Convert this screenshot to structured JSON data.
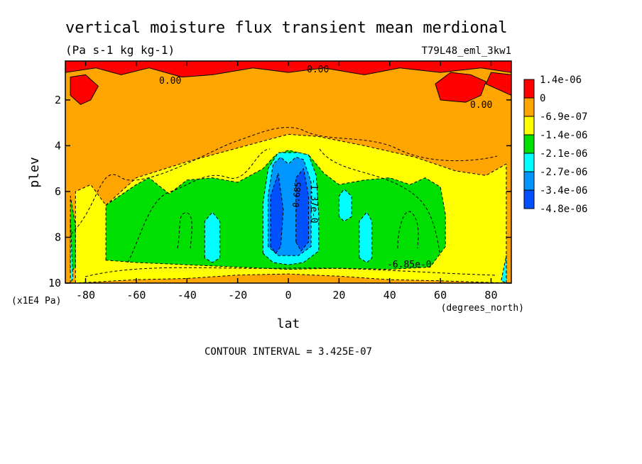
{
  "chart_data": {
    "type": "heatmap",
    "title": "vertical moisture flux transient mean merdional",
    "units": "(Pa s-1 kg kg-1)",
    "dataset": "T79L48_eml_3kw1",
    "xlabel": "lat",
    "xunit": "(degrees_north)",
    "ylabel": "plev",
    "yunit": "(x1E4 Pa)",
    "xlim": [
      -88,
      88
    ],
    "ylim": [
      10,
      0.3
    ],
    "x_ticks": [
      -80,
      -60,
      -40,
      -20,
      0,
      20,
      40,
      60,
      80
    ],
    "x_tick_labels": [
      "-80",
      "-60",
      "-40",
      "-20",
      "0",
      "20",
      "40",
      "60",
      "80"
    ],
    "y_ticks": [
      2,
      4,
      6,
      8,
      10
    ],
    "y_tick_labels": [
      "2",
      "4",
      "6",
      "8",
      "10"
    ],
    "contour_interval": "CONTOUR INTERVAL = 3.425E-07",
    "contour_labels": [
      "0.00",
      "0.00",
      "0.00",
      "-6.85e-0",
      "-1.37e-0",
      "-0.685"
    ],
    "legend": {
      "placement": "right",
      "levels": [
        {
          "label": "1.4e-06",
          "color": "#ff0000"
        },
        {
          "label": "0",
          "color": "#ffa500"
        },
        {
          "label": "-6.9e-07",
          "color": "#ffff00"
        },
        {
          "label": "-1.4e-06",
          "color": "#00e000"
        },
        {
          "label": "-2.1e-06",
          "color": "#00ffff"
        },
        {
          "label": "-2.7e-06",
          "color": "#0096ff"
        },
        {
          "label": "-3.4e-06",
          "color": "#0050ff"
        },
        {
          "label": "-4.8e-06",
          "color": "#ffffff"
        }
      ]
    },
    "regions": [
      {
        "level": "-6.9e-07",
        "points": [
          [
            -84,
            10
          ],
          [
            -84,
            6
          ],
          [
            -78,
            5.7
          ],
          [
            -72,
            6.6
          ],
          [
            -60,
            5.4
          ],
          [
            -40,
            4.7
          ],
          [
            -20,
            4.1
          ],
          [
            -10,
            3.8
          ],
          [
            0,
            3.5
          ],
          [
            12,
            3.6
          ],
          [
            30,
            4.0
          ],
          [
            50,
            4.5
          ],
          [
            66,
            5.1
          ],
          [
            78,
            5.3
          ],
          [
            86,
            4.8
          ],
          [
            86,
            10
          ],
          [
            60,
            9.9
          ],
          [
            40,
            9.85
          ],
          [
            20,
            9.7
          ],
          [
            0,
            9.6
          ],
          [
            -20,
            9.65
          ],
          [
            -40,
            9.8
          ],
          [
            -60,
            9.85
          ]
        ]
      },
      {
        "level": "-1.4e-06",
        "points": [
          [
            -72,
            9.0
          ],
          [
            -72,
            6.6
          ],
          [
            -60,
            5.7
          ],
          [
            -55,
            5.4
          ],
          [
            -47,
            6.1
          ],
          [
            -40,
            5.5
          ],
          [
            -30,
            5.4
          ],
          [
            -20,
            5.6
          ],
          [
            -10,
            5.0
          ],
          [
            -5,
            4.4
          ],
          [
            0,
            4.2
          ],
          [
            8,
            4.4
          ],
          [
            14,
            5.2
          ],
          [
            20,
            5.7
          ],
          [
            30,
            5.5
          ],
          [
            40,
            5.4
          ],
          [
            48,
            5.7
          ],
          [
            54,
            5.4
          ],
          [
            60,
            5.8
          ],
          [
            62,
            7.0
          ],
          [
            62,
            8.4
          ],
          [
            56,
            9.3
          ],
          [
            40,
            9.4
          ],
          [
            20,
            9.35
          ],
          [
            0,
            9.4
          ],
          [
            -20,
            9.3
          ],
          [
            -40,
            9.2
          ],
          [
            -60,
            9.1
          ]
        ]
      },
      {
        "level": "-1.4e-06",
        "points": [
          [
            -86,
            9.5
          ],
          [
            -86,
            6.2
          ],
          [
            -84,
            7.5
          ],
          [
            -84,
            9.3
          ]
        ]
      },
      {
        "level": "-2.1e-06",
        "points": [
          [
            -10,
            8.7
          ],
          [
            -10,
            6.5
          ],
          [
            -8,
            5.0
          ],
          [
            -4,
            4.3
          ],
          [
            0,
            4.3
          ],
          [
            4,
            4.3
          ],
          [
            8,
            4.4
          ],
          [
            11,
            5.3
          ],
          [
            12,
            7.0
          ],
          [
            12,
            8.6
          ],
          [
            6,
            9.1
          ],
          [
            0,
            9.2
          ],
          [
            -6,
            9.1
          ]
        ]
      },
      {
        "level": "-2.1e-06",
        "points": [
          [
            -33,
            8.9
          ],
          [
            -33,
            7.3
          ],
          [
            -30,
            6.9
          ],
          [
            -27,
            7.3
          ],
          [
            -27,
            8.9
          ],
          [
            -30,
            9.1
          ]
        ]
      },
      {
        "level": "-2.1e-06",
        "points": [
          [
            20,
            7.1
          ],
          [
            20,
            6.2
          ],
          [
            22,
            5.9
          ],
          [
            25,
            6.2
          ],
          [
            25,
            7.1
          ],
          [
            22,
            7.3
          ]
        ]
      },
      {
        "level": "-2.1e-06",
        "points": [
          [
            28,
            8.9
          ],
          [
            28,
            7.3
          ],
          [
            31,
            6.9
          ],
          [
            33,
            7.3
          ],
          [
            33,
            8.9
          ],
          [
            31,
            9.1
          ]
        ]
      },
      {
        "level": "-2.1e-06",
        "points": [
          [
            -86,
            10
          ],
          [
            -86,
            7.2
          ],
          [
            -85,
            9.8
          ]
        ]
      },
      {
        "level": "-2.1e-06",
        "points": [
          [
            86,
            10
          ],
          [
            86,
            8.8
          ],
          [
            84,
            9.9
          ]
        ]
      },
      {
        "level": "-2.7e-06",
        "points": [
          [
            -8,
            8.4
          ],
          [
            -8,
            6.2
          ],
          [
            -6,
            4.8
          ],
          [
            -3,
            4.5
          ],
          [
            0,
            4.8
          ],
          [
            3,
            4.5
          ],
          [
            6,
            4.6
          ],
          [
            9,
            5.6
          ],
          [
            9,
            8.4
          ],
          [
            4,
            8.8
          ],
          [
            -4,
            8.8
          ]
        ]
      },
      {
        "level": "-3.4e-06",
        "points": [
          [
            -7,
            8.4
          ],
          [
            -7,
            6.2
          ],
          [
            -4,
            5.2
          ],
          [
            -2,
            6.8
          ],
          [
            -3,
            8.4
          ],
          [
            -5,
            8.7
          ]
        ]
      },
      {
        "level": "-3.4e-06",
        "points": [
          [
            3,
            8.2
          ],
          [
            3,
            5.4
          ],
          [
            6,
            5.0
          ],
          [
            8,
            6.2
          ],
          [
            8,
            8.2
          ],
          [
            5,
            8.6
          ]
        ]
      },
      {
        "level": "1.4e-06",
        "points": [
          [
            -88,
            0.3
          ],
          [
            -88,
            0.8
          ],
          [
            -76,
            0.6
          ],
          [
            -66,
            0.9
          ],
          [
            -55,
            0.6
          ],
          [
            -42,
            1.0
          ],
          [
            -30,
            0.9
          ],
          [
            -14,
            0.6
          ],
          [
            0,
            0.8
          ],
          [
            14,
            0.6
          ],
          [
            30,
            0.9
          ],
          [
            44,
            0.6
          ],
          [
            60,
            0.8
          ],
          [
            76,
            0.6
          ],
          [
            88,
            0.8
          ],
          [
            88,
            0.3
          ]
        ]
      },
      {
        "level": "1.4e-06",
        "points": [
          [
            -86,
            1.8
          ],
          [
            -86,
            1.0
          ],
          [
            -80,
            0.9
          ],
          [
            -75,
            1.4
          ],
          [
            -78,
            2.0
          ],
          [
            -82,
            2.2
          ]
        ]
      },
      {
        "level": "1.4e-06",
        "points": [
          [
            60,
            2.0
          ],
          [
            58,
            1.3
          ],
          [
            64,
            0.8
          ],
          [
            72,
            0.9
          ],
          [
            78,
            1.2
          ],
          [
            76,
            1.8
          ],
          [
            70,
            2.1
          ]
        ]
      },
      {
        "level": "1.4e-06",
        "points": [
          [
            78,
            1.3
          ],
          [
            80,
            0.8
          ],
          [
            88,
            0.9
          ],
          [
            88,
            1.8
          ],
          [
            84,
            1.6
          ]
        ]
      }
    ]
  }
}
